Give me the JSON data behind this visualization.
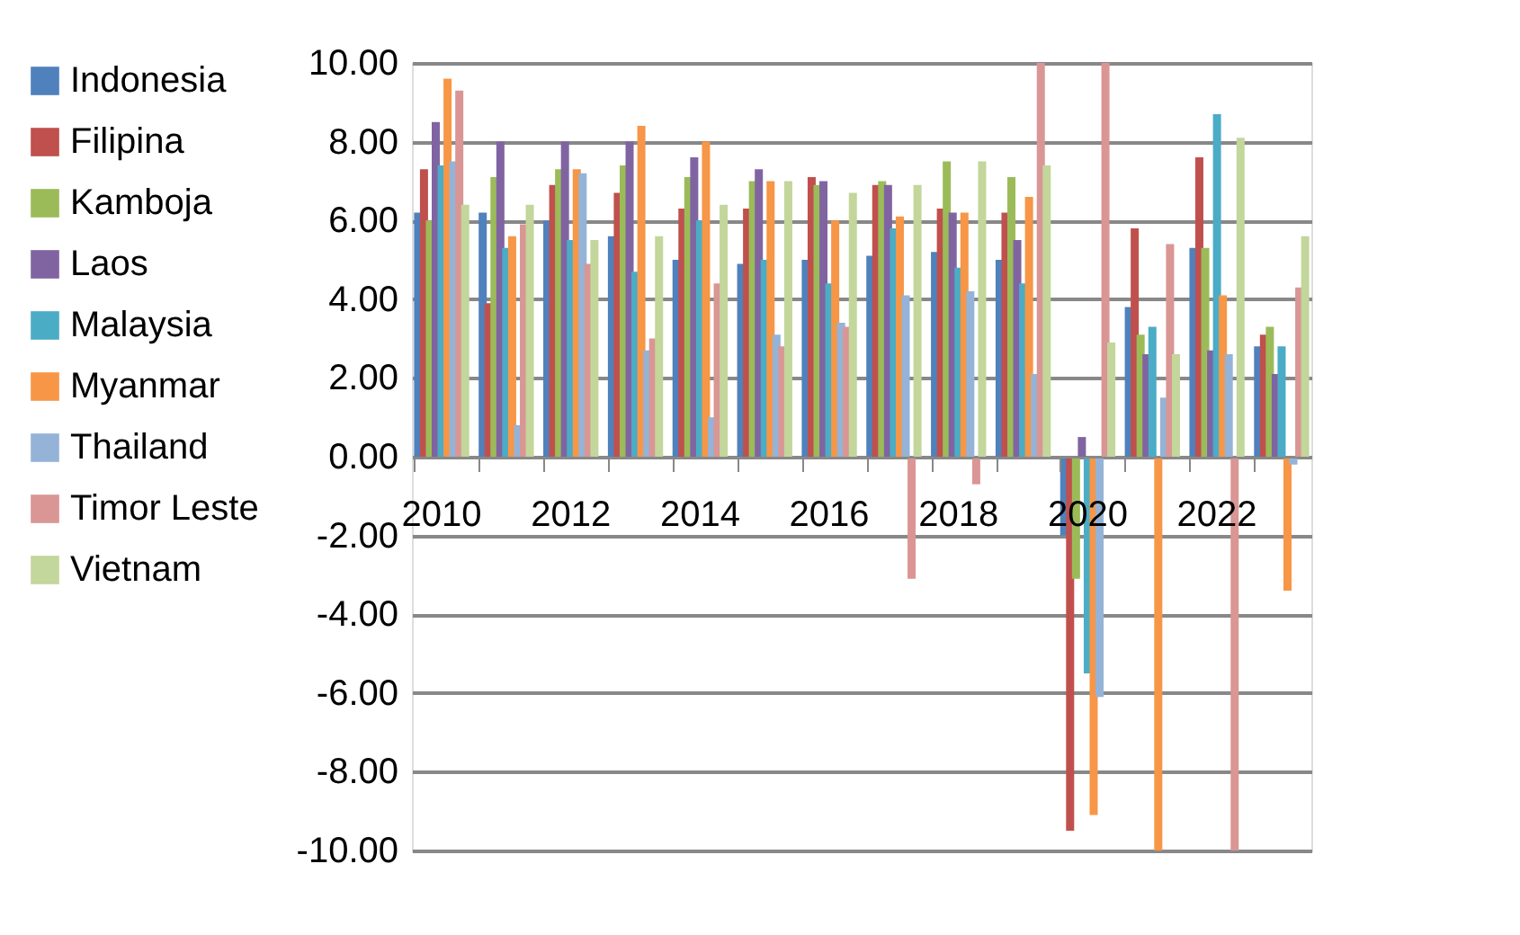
{
  "chart_data": {
    "type": "bar",
    "categories": [
      "2010",
      null,
      "2012",
      null,
      "2014",
      null,
      "2016",
      null,
      "2018",
      null,
      "2020",
      null,
      "2022",
      null
    ],
    "series": [
      {
        "name": "Indonesia",
        "color": "#4f81bd",
        "values": [
          6.2,
          6.2,
          6.0,
          5.6,
          5.0,
          4.9,
          5.0,
          5.1,
          5.2,
          5.0,
          -2.0,
          3.8,
          5.3,
          2.8
        ]
      },
      {
        "name": "Filipina",
        "color": "#c0504d",
        "values": [
          7.3,
          3.9,
          6.9,
          6.7,
          6.3,
          6.3,
          7.1,
          6.9,
          6.3,
          6.2,
          -9.5,
          5.8,
          7.6,
          3.1
        ]
      },
      {
        "name": "Kamboja",
        "color": "#9bbb59",
        "values": [
          6.0,
          7.1,
          7.3,
          7.4,
          7.1,
          7.0,
          6.9,
          7.0,
          7.5,
          7.1,
          -3.1,
          3.1,
          5.3,
          3.3
        ]
      },
      {
        "name": "Laos",
        "color": "#8064a2",
        "values": [
          8.5,
          8.0,
          8.0,
          8.0,
          7.6,
          7.3,
          7.0,
          6.9,
          6.2,
          5.5,
          0.5,
          2.6,
          2.7,
          2.1
        ]
      },
      {
        "name": "Malaysia",
        "color": "#4bacc6",
        "values": [
          7.4,
          5.3,
          5.5,
          4.7,
          6.0,
          5.0,
          4.4,
          5.8,
          4.8,
          4.4,
          -5.5,
          3.3,
          8.7,
          2.8
        ]
      },
      {
        "name": "Myanmar",
        "color": "#f79646",
        "values": [
          9.6,
          5.6,
          7.3,
          8.4,
          8.0,
          7.0,
          6.0,
          6.1,
          6.2,
          6.6,
          -9.1,
          -10.0,
          4.1,
          -3.4
        ]
      },
      {
        "name": "Thailand",
        "color": "#95b3d7",
        "values": [
          7.5,
          0.8,
          7.2,
          2.7,
          1.0,
          3.1,
          3.4,
          4.1,
          4.2,
          2.1,
          -6.1,
          1.5,
          2.6,
          -0.2
        ]
      },
      {
        "name": "Timor Leste",
        "color": "#d99694",
        "values": [
          9.3,
          5.9,
          4.9,
          3.0,
          4.4,
          2.8,
          3.3,
          -3.1,
          -0.7,
          10.0,
          10.0,
          5.4,
          -10.0,
          4.3
        ]
      },
      {
        "name": "Vietnam",
        "color": "#c3d69b",
        "values": [
          6.4,
          6.4,
          5.5,
          5.6,
          6.4,
          7.0,
          6.7,
          6.9,
          7.5,
          7.4,
          2.9,
          2.6,
          8.1,
          5.6
        ]
      }
    ],
    "ylim": [
      -10,
      10
    ],
    "yticks": [
      {
        "value": -10,
        "label": "-10.00"
      },
      {
        "value": -8,
        "label": "-8.00"
      },
      {
        "value": -6,
        "label": "-6.00"
      },
      {
        "value": -4,
        "label": "-4.00"
      },
      {
        "value": -2,
        "label": "-2.00"
      },
      {
        "value": 0,
        "label": "0.00"
      },
      {
        "value": 2,
        "label": "2.00"
      },
      {
        "value": 4,
        "label": "4.00"
      },
      {
        "value": 6,
        "label": "6.00"
      },
      {
        "value": 8,
        "label": "8.00"
      },
      {
        "value": 10,
        "label": "10.00"
      }
    ],
    "grid": "y",
    "legend": "left"
  }
}
